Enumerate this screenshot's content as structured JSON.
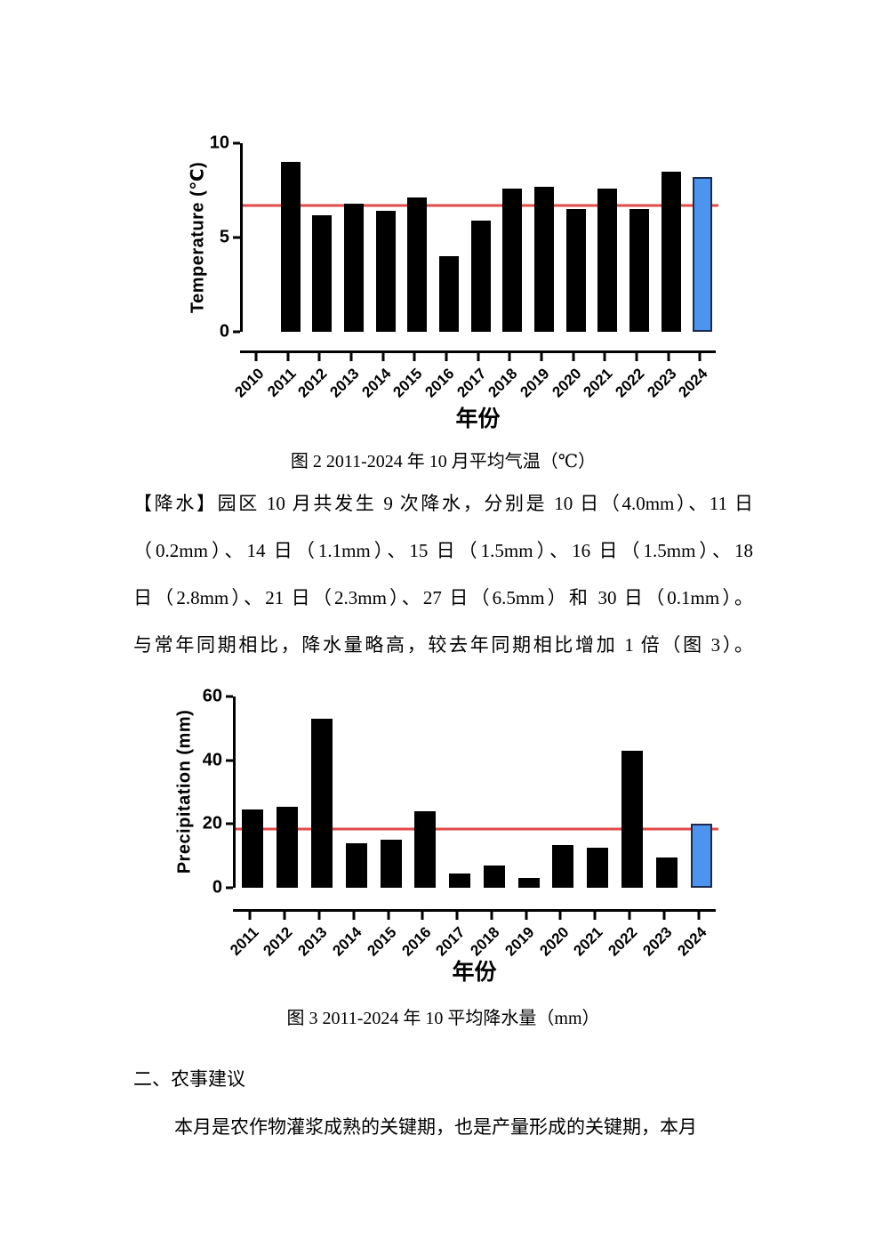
{
  "page": {
    "captions": {
      "fig2": "图 2 2011-2024 年 10 月平均气温（℃）",
      "fig3": "图 3 2011-2024 年 10 平均降水量（mm）"
    },
    "precip_paragraph_lines": [
      "【降水】园区 10 月共发生 9 次降水，分别是 10 日（4.0mm）、11 日",
      "（0.2mm）、14 日（1.1mm）、15 日（1.5mm）、16 日（1.5mm）、18",
      "日（2.8mm）、21 日（2.3mm）、27 日（6.5mm）和 30 日（0.1mm）。",
      "与常年同期相比，降水量略高，较去年同期相比增加 1 倍（图 3）。"
    ],
    "section_heading": "二、农事建议",
    "advice_paragraph": "本月是农作物灌浆成熟的关键期，也是产量形成的关键期，本月"
  },
  "chart_data": [
    {
      "type": "bar",
      "title": "图 2 2011-2024 年 10 月平均气温（℃）",
      "xlabel": "年份",
      "ylabel": "Temperature (℃)",
      "ylim": [
        0,
        10
      ],
      "yticks": [
        0,
        5,
        10
      ],
      "grid": false,
      "legend": false,
      "categories": [
        "2010",
        "2011",
        "2012",
        "2013",
        "2014",
        "2015",
        "2016",
        "2017",
        "2018",
        "2019",
        "2020",
        "2021",
        "2022",
        "2023",
        "2024"
      ],
      "values": [
        null,
        9.0,
        6.2,
        6.8,
        6.4,
        7.1,
        4.0,
        5.9,
        7.6,
        7.7,
        6.5,
        7.6,
        6.5,
        8.5,
        8.2
      ],
      "reference_line": 6.7,
      "highlight_category": "2024",
      "bar_color": "#000000",
      "highlight_color": "#4D94EE",
      "highlight_border_color": "#1C2B4E",
      "refline_color": "#E04B4B"
    },
    {
      "type": "bar",
      "title": "图 3 2011-2024 年 10 平均降水量（mm）",
      "xlabel": "年份",
      "ylabel": "Precipitation (mm)",
      "ylim": [
        0,
        60
      ],
      "yticks": [
        0,
        20,
        40,
        60
      ],
      "grid": false,
      "legend": false,
      "categories": [
        "2011",
        "2012",
        "2013",
        "2014",
        "2015",
        "2016",
        "2017",
        "2018",
        "2019",
        "2020",
        "2021",
        "2022",
        "2023",
        "2024"
      ],
      "values": [
        24.5,
        25.5,
        53,
        14,
        15,
        24,
        4.5,
        7,
        3,
        13.5,
        12.5,
        43,
        9.5,
        20
      ],
      "reference_line": 18.5,
      "highlight_category": "2024",
      "bar_color": "#000000",
      "highlight_color": "#4D94EE",
      "highlight_border_color": "#1C2B4E",
      "refline_color": "#E04B4B"
    }
  ]
}
